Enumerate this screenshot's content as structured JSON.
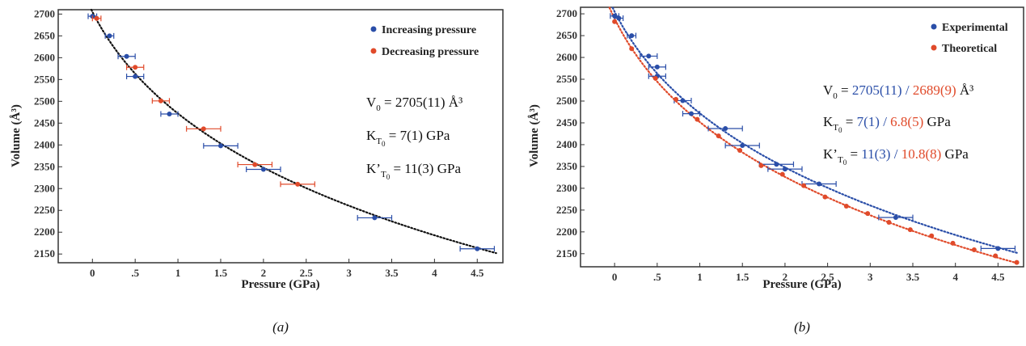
{
  "chart_data": [
    {
      "type": "scatter",
      "xlabel": "Pressure (GPa)",
      "ylabel": "Volume (Å³)",
      "xlim": [
        -0.4,
        4.8
      ],
      "ylim": [
        2130,
        2710
      ],
      "xticks": [
        0,
        0.5,
        1,
        1.5,
        2,
        2.5,
        3,
        3.5,
        4,
        4.5
      ],
      "xtick_labels": [
        "0",
        ".5",
        "1",
        "1.5",
        "2",
        "2.5",
        "3",
        "3.5",
        "4",
        "4.5"
      ],
      "yticks": [
        2150,
        2200,
        2250,
        2300,
        2350,
        2400,
        2450,
        2500,
        2550,
        2600,
        2650,
        2700
      ],
      "legend_position": "top-right",
      "series": [
        {
          "name": "Increasing pressure",
          "color": "#2a4ea8",
          "points": [
            {
              "x": 0.0,
              "y": 2695,
              "xerr": 0.05
            },
            {
              "x": 0.2,
              "y": 2650,
              "xerr": 0.05
            },
            {
              "x": 0.4,
              "y": 2603,
              "xerr": 0.1
            },
            {
              "x": 0.5,
              "y": 2557,
              "xerr": 0.1
            },
            {
              "x": 0.9,
              "y": 2471,
              "xerr": 0.1
            },
            {
              "x": 1.5,
              "y": 2398,
              "xerr": 0.2
            },
            {
              "x": 2.0,
              "y": 2344,
              "xerr": 0.2
            },
            {
              "x": 3.3,
              "y": 2233,
              "xerr": 0.2
            },
            {
              "x": 4.5,
              "y": 2162,
              "xerr": 0.2
            }
          ]
        },
        {
          "name": "Decreasing pressure",
          "color": "#e04a2a",
          "points": [
            {
              "x": 0.05,
              "y": 2690,
              "xerr": 0.05
            },
            {
              "x": 0.5,
              "y": 2578,
              "xerr": 0.1
            },
            {
              "x": 0.8,
              "y": 2501,
              "xerr": 0.1
            },
            {
              "x": 1.3,
              "y": 2437,
              "xerr": 0.2
            },
            {
              "x": 1.9,
              "y": 2355,
              "xerr": 0.2
            },
            {
              "x": 2.4,
              "y": 2310,
              "xerr": 0.2
            }
          ]
        },
        {
          "name": "",
          "type": "line",
          "style": "dotted",
          "color": "#111111",
          "eos": {
            "V0": 2705,
            "K0": 7,
            "Kp": 11
          }
        }
      ],
      "parameters": {
        "v0": "V",
        "v0_sub": "0",
        "v0_text": " = 2705(11) Å³",
        "k": "K",
        "k_sub": "T",
        "k_subsub": "0",
        "k_text": " = 7(1) GPa",
        "kp": "K’",
        "kp_sub": "T",
        "kp_subsub": "0",
        "kp_text": " = 11(3) GPa"
      },
      "caption": "(a)"
    },
    {
      "type": "scatter",
      "xlabel": "Pressure (GPa)",
      "ylabel": "Volume (Å³)",
      "xlim": [
        -0.4,
        4.8
      ],
      "ylim": [
        2120,
        2715
      ],
      "xticks": [
        0,
        0.5,
        1,
        1.5,
        2,
        2.5,
        3,
        3.5,
        4,
        4.5
      ],
      "xtick_labels": [
        "0",
        ".5",
        "1",
        "1.5",
        "2",
        "2.5",
        "3",
        "3.5",
        "4",
        "4.5"
      ],
      "yticks": [
        2150,
        2200,
        2250,
        2300,
        2350,
        2400,
        2450,
        2500,
        2550,
        2600,
        2650,
        2700
      ],
      "legend_position": "top-right",
      "series": [
        {
          "name": "Experimental",
          "color": "#2a4ea8",
          "points": [
            {
              "x": 0.0,
              "y": 2695,
              "xerr": 0.05
            },
            {
              "x": 0.05,
              "y": 2690,
              "xerr": 0.05
            },
            {
              "x": 0.2,
              "y": 2650,
              "xerr": 0.05
            },
            {
              "x": 0.4,
              "y": 2603,
              "xerr": 0.1
            },
            {
              "x": 0.5,
              "y": 2578,
              "xerr": 0.1
            },
            {
              "x": 0.5,
              "y": 2557,
              "xerr": 0.1
            },
            {
              "x": 0.8,
              "y": 2501,
              "xerr": 0.1
            },
            {
              "x": 0.9,
              "y": 2471,
              "xerr": 0.1
            },
            {
              "x": 1.3,
              "y": 2437,
              "xerr": 0.2
            },
            {
              "x": 1.5,
              "y": 2398,
              "xerr": 0.2
            },
            {
              "x": 1.9,
              "y": 2355,
              "xerr": 0.2
            },
            {
              "x": 2.0,
              "y": 2344,
              "xerr": 0.2
            },
            {
              "x": 2.4,
              "y": 2310,
              "xerr": 0.2
            },
            {
              "x": 3.3,
              "y": 2233,
              "xerr": 0.2
            },
            {
              "x": 4.5,
              "y": 2162,
              "xerr": 0.2
            }
          ]
        },
        {
          "name": "Theoretical",
          "color": "#e04a2a",
          "points": [
            {
              "x": 0.0,
              "y": 2682
            },
            {
              "x": 0.2,
              "y": 2620
            },
            {
              "x": 0.48,
              "y": 2552
            },
            {
              "x": 0.72,
              "y": 2504
            },
            {
              "x": 0.97,
              "y": 2458
            },
            {
              "x": 1.22,
              "y": 2420
            },
            {
              "x": 1.47,
              "y": 2387
            },
            {
              "x": 1.72,
              "y": 2352
            },
            {
              "x": 1.97,
              "y": 2332
            },
            {
              "x": 2.22,
              "y": 2306
            },
            {
              "x": 2.47,
              "y": 2280
            },
            {
              "x": 2.72,
              "y": 2259
            },
            {
              "x": 2.97,
              "y": 2242
            },
            {
              "x": 3.22,
              "y": 2222
            },
            {
              "x": 3.47,
              "y": 2205
            },
            {
              "x": 3.72,
              "y": 2191
            },
            {
              "x": 3.97,
              "y": 2174
            },
            {
              "x": 4.22,
              "y": 2159
            },
            {
              "x": 4.47,
              "y": 2145
            },
            {
              "x": 4.72,
              "y": 2130
            }
          ]
        },
        {
          "name": "",
          "type": "line",
          "style": "dotted",
          "color": "#2a4ea8",
          "eos": {
            "V0": 2705,
            "K0": 7,
            "Kp": 11
          }
        },
        {
          "name": "",
          "type": "line",
          "style": "dotted",
          "color": "#e04a2a",
          "eos": {
            "V0": 2689,
            "K0": 6.8,
            "Kp": 10.8
          }
        }
      ],
      "parameters": {
        "v0": "V",
        "v0_sub": "0",
        "v0_eq": " = ",
        "v0_exp": "2705(11)",
        "slash1": " / ",
        "v0_theo": "2689(9)",
        "v0_unit": " Å³",
        "k": "K",
        "k_sub": "T",
        "k_subsub": "0",
        "k_eq": " = ",
        "k_exp": "7(1)",
        "slash2": " / ",
        "k_theo": "6.8(5)",
        "k_unit": " GPa",
        "kp": "K’",
        "kp_sub": "T",
        "kp_subsub": "0",
        "kp_eq": " = ",
        "kp_exp": "11(3)",
        "slash3": " / ",
        "kp_theo": "10.8(8)",
        "kp_unit": " GPa"
      },
      "caption": "(b)"
    }
  ]
}
